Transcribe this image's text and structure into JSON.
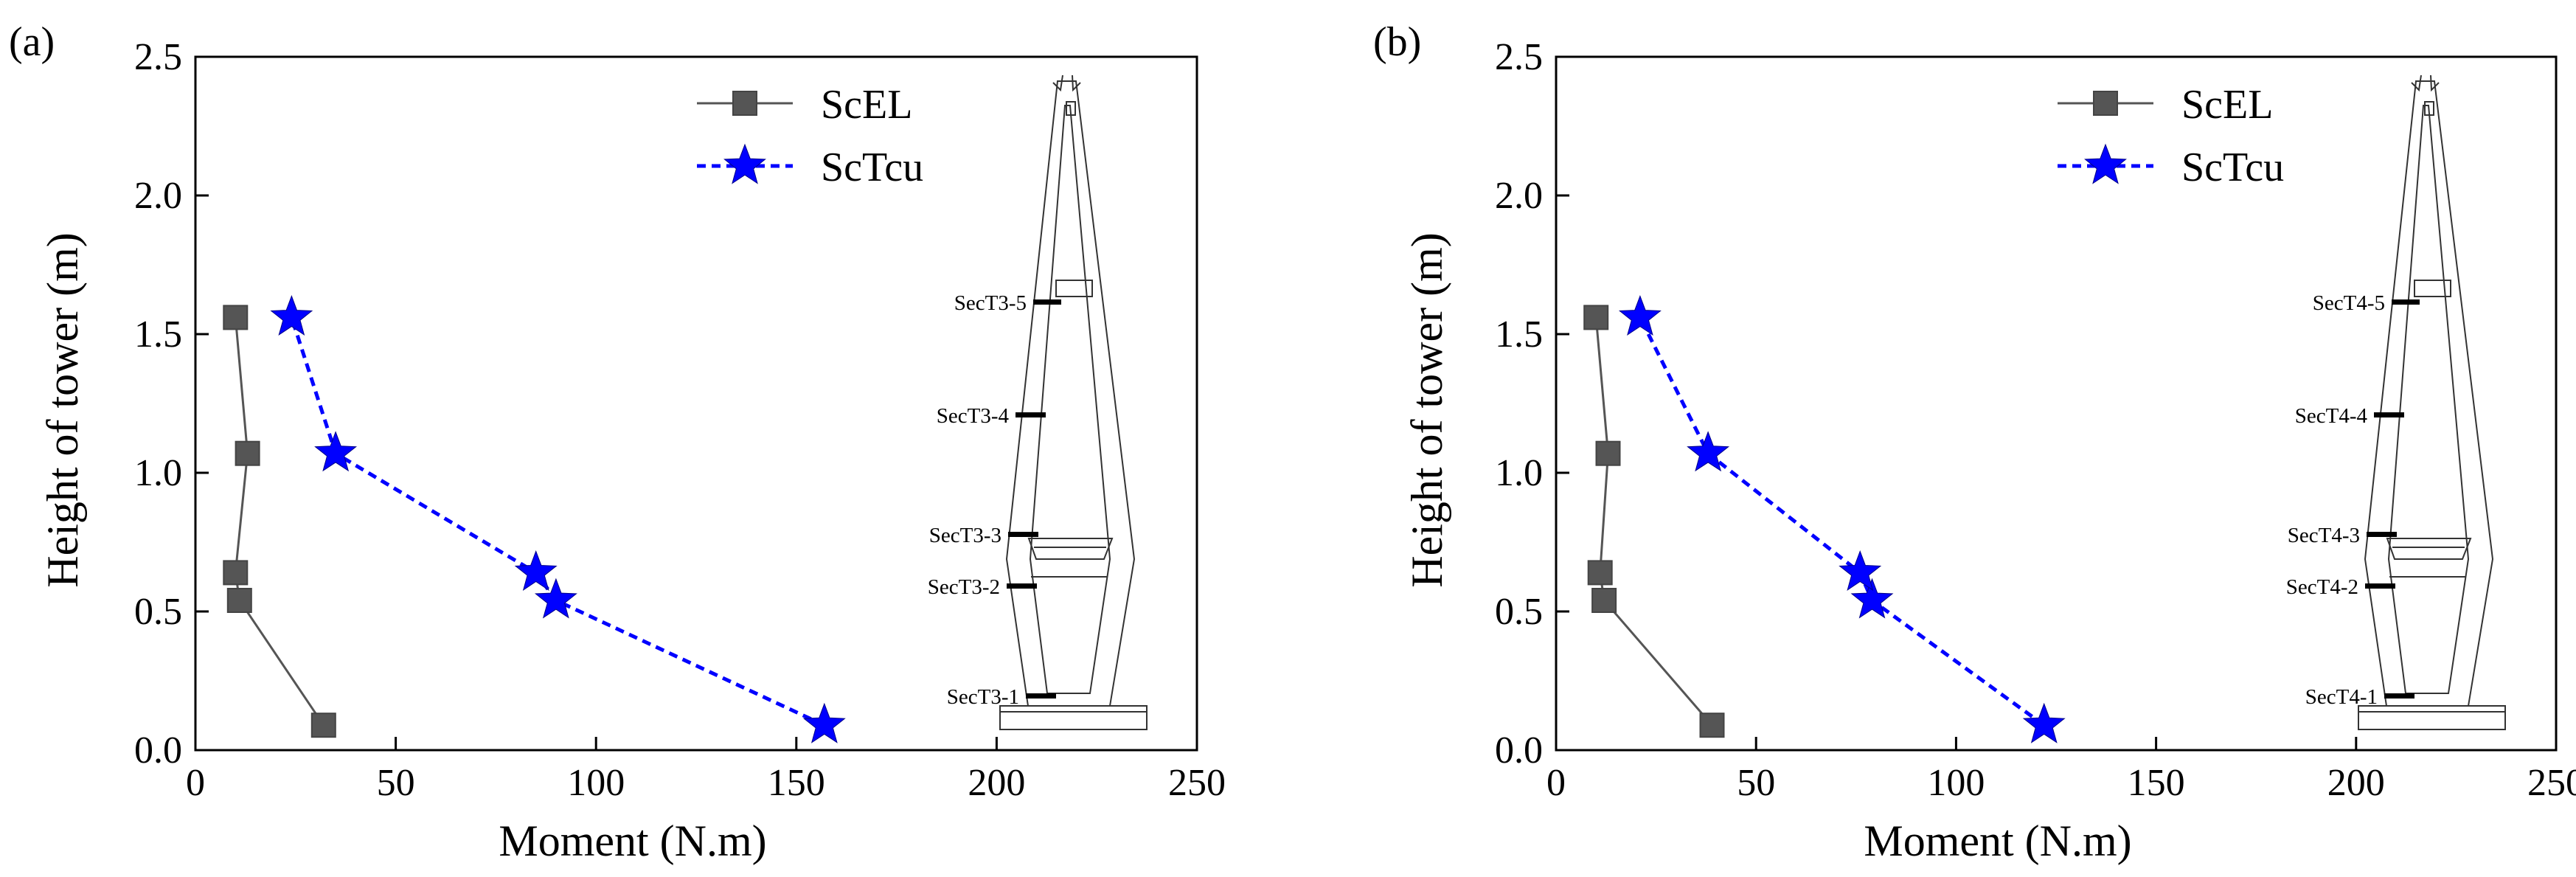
{
  "colors": {
    "scel": "#555555",
    "sctcu": "#0000ff",
    "axis": "#000000"
  },
  "chart_data": [
    {
      "type": "line",
      "panel_label": "(a)",
      "xlabel": "Moment (N.m)",
      "ylabel": "Height of tower (m)",
      "xlim": [
        0,
        250
      ],
      "ylim": [
        0,
        2.5
      ],
      "xticks": [
        "0",
        "50",
        "100",
        "150",
        "200",
        "250"
      ],
      "yticks": [
        "0.0",
        "0.5",
        "1.0",
        "1.5",
        "2.0",
        "2.5"
      ],
      "legend_position": "top-center",
      "series": [
        {
          "name": "ScEL",
          "marker": "square",
          "line": "solid",
          "x": [
            32,
            11,
            10,
            13,
            10
          ],
          "y": [
            0.09,
            0.54,
            0.64,
            1.07,
            1.56
          ]
        },
        {
          "name": "ScTcu",
          "marker": "star",
          "line": "dashed",
          "x": [
            157,
            90,
            85,
            35,
            24
          ],
          "y": [
            0.09,
            0.54,
            0.64,
            1.07,
            1.56
          ]
        }
      ],
      "sections": [
        "SecT3-5",
        "SecT3-4",
        "SecT3-3",
        "SecT3-2",
        "SecT3-1"
      ]
    },
    {
      "type": "line",
      "panel_label": "(b)",
      "xlabel": "Moment (N.m)",
      "ylabel": "Height of tower (m)",
      "xlim": [
        0,
        250
      ],
      "ylim": [
        0,
        2.5
      ],
      "xticks": [
        "0",
        "50",
        "100",
        "150",
        "200",
        "250"
      ],
      "yticks": [
        "0.0",
        "0.5",
        "1.0",
        "1.5",
        "2.0",
        "2.5"
      ],
      "legend_position": "top-center",
      "series": [
        {
          "name": "ScEL",
          "marker": "square",
          "line": "solid",
          "x": [
            39,
            12,
            11,
            13,
            10
          ],
          "y": [
            0.09,
            0.54,
            0.64,
            1.07,
            1.56
          ]
        },
        {
          "name": "ScTcu",
          "marker": "star",
          "line": "dashed",
          "x": [
            122,
            79,
            76,
            38,
            21
          ],
          "y": [
            0.09,
            0.54,
            0.64,
            1.07,
            1.56
          ]
        }
      ],
      "sections": [
        "SecT4-5",
        "SecT4-4",
        "SecT4-3",
        "SecT4-2",
        "SecT4-1"
      ]
    }
  ]
}
